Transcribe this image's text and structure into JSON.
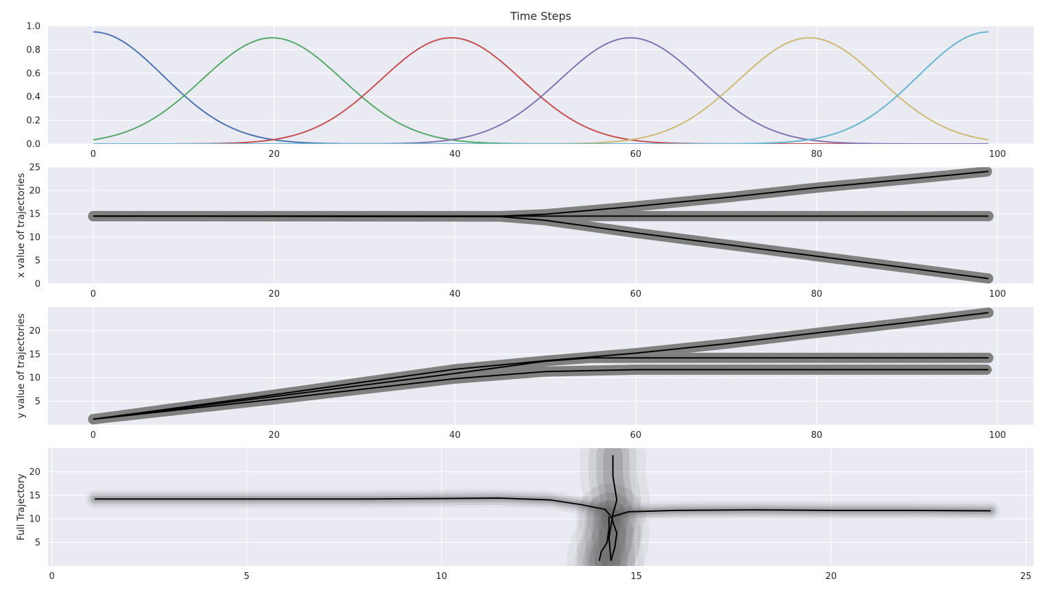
{
  "chart_data": [
    {
      "type": "line",
      "title": "Time Steps",
      "xlabel": "",
      "ylabel": "",
      "xlim": [
        -5,
        104
      ],
      "ylim": [
        0,
        1.0
      ],
      "xticks": [
        "0",
        "20",
        "40",
        "60",
        "80",
        "100"
      ],
      "yticks": [
        "0.0",
        "0.2",
        "0.4",
        "0.6",
        "0.8",
        "1.0"
      ],
      "grid": true,
      "basis_functions": {
        "x_range": [
          0,
          99
        ],
        "centers": [
          0,
          19.8,
          39.6,
          59.4,
          79.2,
          99
        ],
        "peaks": [
          0.95,
          0.9,
          0.9,
          0.9,
          0.9,
          0.95
        ],
        "colors": [
          "#4c72b0",
          "#55a868",
          "#c44e52",
          "#8172b2",
          "#ccb974",
          "#64b5cd"
        ]
      }
    },
    {
      "type": "line",
      "title": "",
      "xlabel": "",
      "ylabel": "x value of trajectories",
      "xlim": [
        -5,
        104
      ],
      "ylim": [
        0,
        25
      ],
      "xticks": [
        "0",
        "20",
        "40",
        "60",
        "80",
        "100"
      ],
      "yticks": [
        "0",
        "5",
        "10",
        "15",
        "20",
        "25"
      ],
      "grid": true,
      "series": [
        {
          "x": [
            0,
            45,
            50,
            60,
            70,
            80,
            90,
            99
          ],
          "y": [
            14.5,
            14.5,
            14.9,
            16.6,
            18.5,
            20.6,
            22.4,
            24.1
          ]
        },
        {
          "x": [
            0,
            99
          ],
          "y": [
            14.5,
            14.5
          ]
        },
        {
          "x": [
            0,
            45,
            50,
            60,
            70,
            80,
            90,
            99
          ],
          "y": [
            14.5,
            14.4,
            13.6,
            10.9,
            8.4,
            5.9,
            3.4,
            1.1
          ]
        }
      ]
    },
    {
      "type": "line",
      "title": "",
      "xlabel": "",
      "ylabel": "y value of trajectories",
      "xlim": [
        -5,
        104
      ],
      "ylim": [
        0,
        25
      ],
      "xticks": [
        "0",
        "20",
        "40",
        "60",
        "80",
        "100"
      ],
      "yticks": [
        "5",
        "10",
        "15",
        "20"
      ],
      "grid": true,
      "series": [
        {
          "x": [
            0,
            20,
            40,
            50,
            60,
            70,
            80,
            90,
            99
          ],
          "y": [
            1.2,
            6.4,
            11.8,
            13.6,
            15.2,
            17.2,
            19.5,
            21.7,
            23.8
          ]
        },
        {
          "x": [
            0,
            20,
            40,
            50,
            55,
            60,
            80,
            99
          ],
          "y": [
            1.2,
            6.0,
            10.9,
            13.5,
            14.2,
            14.2,
            14.2,
            14.2
          ]
        },
        {
          "x": [
            0,
            20,
            40,
            50,
            60,
            80,
            99
          ],
          "y": [
            1.2,
            5.4,
            9.8,
            11.3,
            11.7,
            11.7,
            11.7
          ]
        }
      ]
    },
    {
      "type": "line",
      "title": "",
      "xlabel": "",
      "ylabel": "Full Trajectory",
      "xlim": [
        -0.1,
        25.2
      ],
      "ylim": [
        0,
        25
      ],
      "xticks": [
        "0",
        "5",
        "10",
        "15",
        "20",
        "25"
      ],
      "yticks": [
        "5",
        "10",
        "15",
        "20"
      ],
      "grid": true,
      "series": [
        {
          "x": [
            1.1,
            8,
            11.5,
            12.8,
            13.6,
            14.2,
            14.35
          ],
          "y": [
            14.2,
            14.2,
            14.4,
            14.0,
            13.0,
            12.0,
            10.5
          ]
        },
        {
          "x": [
            14.4,
            14.8,
            16,
            18,
            20,
            22,
            24.1
          ],
          "y": [
            10.5,
            11.5,
            11.8,
            11.9,
            11.8,
            11.8,
            11.7
          ]
        },
        {
          "x": [
            14.4,
            14.4,
            14.5,
            14.4,
            14.3,
            14.35
          ],
          "y": [
            23.5,
            19,
            14,
            11,
            6,
            1.1
          ]
        },
        {
          "x": [
            14.3,
            14.3,
            14.25,
            14.1,
            14.05
          ],
          "y": [
            10.5,
            8,
            5,
            3,
            1.1
          ]
        },
        {
          "x": [
            14.35,
            14.5,
            14.45,
            14.35
          ],
          "y": [
            10.5,
            7,
            4,
            1.1
          ]
        }
      ]
    }
  ]
}
